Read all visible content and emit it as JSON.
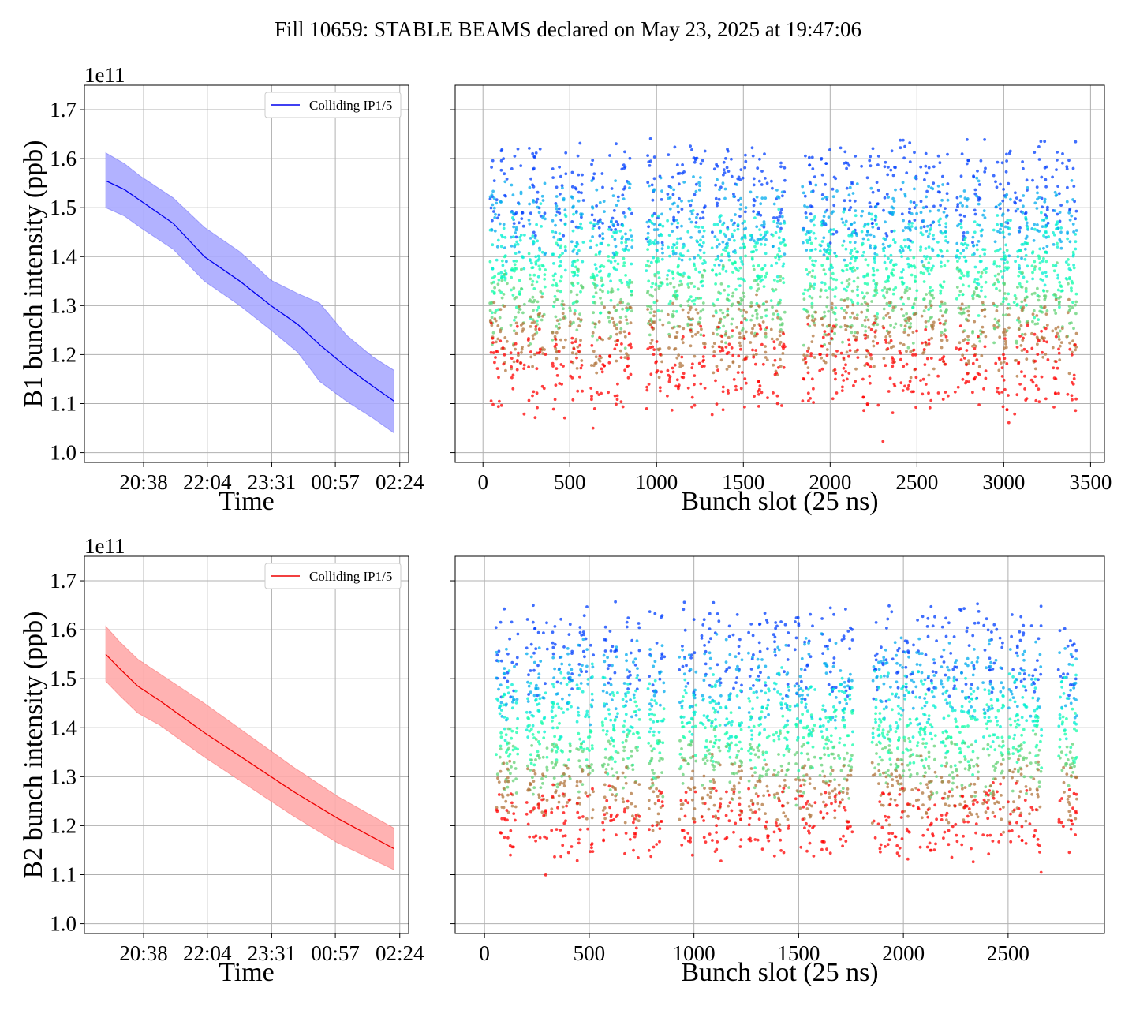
{
  "title": "Fill 10659: STABLE BEAMS declared on May 23, 2025 at 19:47:06",
  "colors": {
    "b1_line": "#0000ee",
    "b1_band": "#aaaaff",
    "b2_line": "#ee0000",
    "b2_band": "#ffaaaa",
    "grid": "#b0b0b0"
  },
  "chart_data": [
    {
      "id": "b1-time",
      "type": "line",
      "title": "",
      "xlabel": "Time",
      "ylabel": "B1 bunch intensity (ppb)",
      "y_offset_text": "1e11",
      "xtick_labels": [
        "20:38",
        "22:04",
        "23:31",
        "00:57",
        "02:24"
      ],
      "xtick_hours": [
        20.633,
        22.067,
        23.517,
        24.95,
        26.4
      ],
      "xlim_hours": [
        19.3,
        26.6
      ],
      "yticks": [
        1.0,
        1.1,
        1.2,
        1.3,
        1.4,
        1.5,
        1.6,
        1.7
      ],
      "ylim": [
        0.98,
        1.75
      ],
      "legend": {
        "label": "Colliding IP1/5",
        "position": "top-right"
      },
      "series": [
        {
          "name": "Colliding IP1/5",
          "x_hours": [
            19.78,
            20.2,
            20.55,
            21.3,
            22.0,
            22.8,
            23.5,
            24.1,
            24.6,
            25.2,
            25.8,
            26.27
          ],
          "mean": [
            1.555,
            1.537,
            1.515,
            1.468,
            1.4,
            1.35,
            1.3,
            1.262,
            1.22,
            1.175,
            1.135,
            1.105
          ],
          "upper": [
            1.612,
            1.59,
            1.565,
            1.52,
            1.46,
            1.41,
            1.352,
            1.325,
            1.305,
            1.24,
            1.195,
            1.168
          ],
          "lower": [
            1.5,
            1.483,
            1.46,
            1.415,
            1.35,
            1.3,
            1.25,
            1.205,
            1.145,
            1.105,
            1.07,
            1.04
          ]
        }
      ],
      "grid": true
    },
    {
      "id": "b1-slot",
      "type": "scatter",
      "title": "",
      "xlabel": "Bunch slot (25 ns)",
      "ylabel": "",
      "xticks": [
        0,
        500,
        1000,
        1500,
        2000,
        2500,
        3000,
        3500
      ],
      "xlim": [
        -160,
        3580
      ],
      "yticks": [
        1.0,
        1.1,
        1.2,
        1.3,
        1.4,
        1.5,
        1.6,
        1.7
      ],
      "ylim": [
        0.98,
        1.75
      ],
      "colormap": "rainbow",
      "color_note": "points coloured by time: purple = earliest, red = latest",
      "trains_slot_ranges": [
        [
          40,
          140
        ],
        [
          160,
          240
        ],
        [
          260,
          360
        ],
        [
          400,
          480
        ],
        [
          500,
          580
        ],
        [
          620,
          700
        ],
        [
          720,
          780
        ],
        [
          790,
          860
        ],
        [
          940,
          1040
        ],
        [
          1060,
          1160
        ],
        [
          1180,
          1280
        ],
        [
          1320,
          1420
        ],
        [
          1430,
          1520
        ],
        [
          1540,
          1640
        ],
        [
          1660,
          1740
        ],
        [
          1840,
          1920
        ],
        [
          1940,
          2040
        ],
        [
          2060,
          2160
        ],
        [
          2180,
          2280
        ],
        [
          2300,
          2380
        ],
        [
          2400,
          2500
        ],
        [
          2520,
          2600
        ],
        [
          2620,
          2680
        ],
        [
          2720,
          2800
        ],
        [
          2820,
          2900
        ],
        [
          2940,
          3040
        ],
        [
          3060,
          3140
        ],
        [
          3160,
          3260
        ],
        [
          3280,
          3340
        ],
        [
          3360,
          3420
        ]
      ],
      "intensity_start_range": [
        1.45,
        1.62
      ],
      "intensity_end_range": [
        1.1,
        1.25
      ],
      "grid": true
    },
    {
      "id": "b2-time",
      "type": "line",
      "title": "",
      "xlabel": "Time",
      "ylabel": "B2 bunch intensity (ppb)",
      "y_offset_text": "1e11",
      "xtick_labels": [
        "20:38",
        "22:04",
        "23:31",
        "00:57",
        "02:24"
      ],
      "xtick_hours": [
        20.633,
        22.067,
        23.517,
        24.95,
        26.4
      ],
      "xlim_hours": [
        19.3,
        26.6
      ],
      "yticks": [
        1.0,
        1.1,
        1.2,
        1.3,
        1.4,
        1.5,
        1.6,
        1.7
      ],
      "ylim": [
        0.98,
        1.75
      ],
      "legend": {
        "label": "Colliding IP1/5",
        "position": "top-right"
      },
      "series": [
        {
          "name": "Colliding IP1/5",
          "x_hours": [
            19.78,
            20.1,
            20.5,
            21.0,
            22.0,
            23.0,
            24.0,
            25.0,
            26.27
          ],
          "mean": [
            1.55,
            1.52,
            1.485,
            1.455,
            1.39,
            1.33,
            1.27,
            1.215,
            1.153
          ],
          "upper": [
            1.607,
            1.575,
            1.54,
            1.51,
            1.45,
            1.385,
            1.32,
            1.26,
            1.195
          ],
          "lower": [
            1.495,
            1.465,
            1.43,
            1.405,
            1.34,
            1.28,
            1.22,
            1.165,
            1.11
          ]
        }
      ],
      "grid": true
    },
    {
      "id": "b2-slot",
      "type": "scatter",
      "title": "",
      "xlabel": "Bunch slot (25 ns)",
      "ylabel": "",
      "xticks": [
        0,
        500,
        1000,
        1500,
        2000,
        2500
      ],
      "xlim": [
        -140,
        2960
      ],
      "yticks": [
        1.0,
        1.1,
        1.2,
        1.3,
        1.4,
        1.5,
        1.6,
        1.7
      ],
      "ylim": [
        0.98,
        1.75
      ],
      "colormap": "rainbow",
      "color_note": "points coloured by time: purple = earliest, red = latest",
      "trains_slot_ranges": [
        [
          55,
          160
        ],
        [
          200,
          300
        ],
        [
          320,
          420
        ],
        [
          440,
          520
        ],
        [
          560,
          640
        ],
        [
          660,
          740
        ],
        [
          780,
          860
        ],
        [
          930,
          1010
        ],
        [
          1030,
          1130
        ],
        [
          1150,
          1230
        ],
        [
          1260,
          1360
        ],
        [
          1380,
          1460
        ],
        [
          1480,
          1580
        ],
        [
          1600,
          1680
        ],
        [
          1690,
          1760
        ],
        [
          1850,
          1950
        ],
        [
          1960,
          2050
        ],
        [
          2060,
          2160
        ],
        [
          2180,
          2260
        ],
        [
          2270,
          2360
        ],
        [
          2380,
          2480
        ],
        [
          2500,
          2590
        ],
        [
          2600,
          2660
        ],
        [
          2740,
          2830
        ]
      ],
      "intensity_start_range": [
        1.47,
        1.64
      ],
      "intensity_end_range": [
        1.15,
        1.27
      ],
      "grid": true
    }
  ]
}
